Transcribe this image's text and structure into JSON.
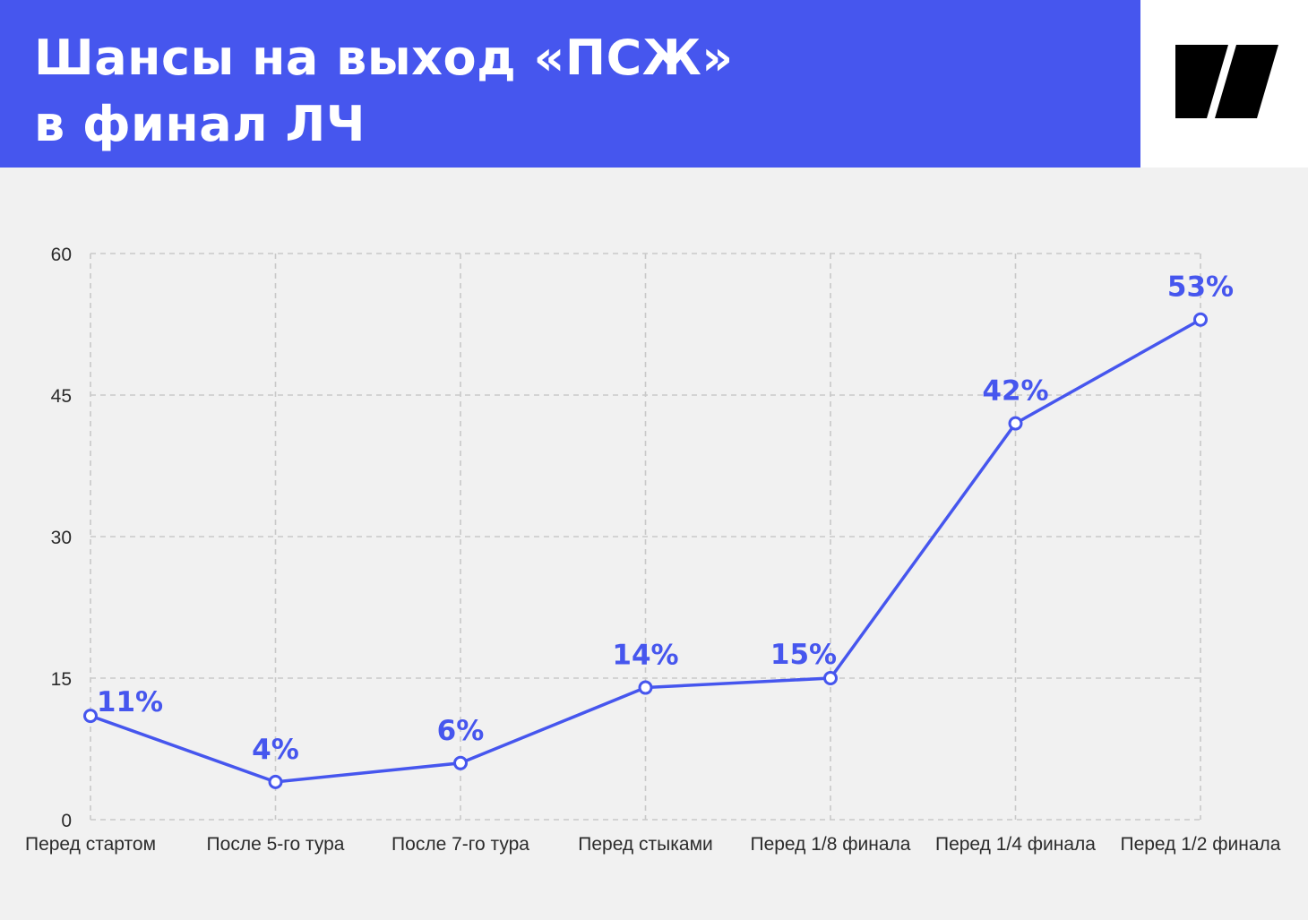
{
  "header": {
    "title_line1": "Шансы на выход «ПСЖ»",
    "title_line2": "в финал ЛЧ",
    "band_color": "#4656ee",
    "logo_icon": "publisher-logo-icon"
  },
  "chart_data": {
    "type": "line",
    "title": "Шансы на выход «ПСЖ» в финал ЛЧ",
    "categories": [
      "Перед стартом",
      "После 5-го тура",
      "После 7-го тура",
      "Перед стыками",
      "Перед 1/8 финала",
      "Перед 1/4 финала",
      "Перед 1/2 финала"
    ],
    "values": [
      11,
      4,
      6,
      14,
      15,
      42,
      53
    ],
    "data_labels": [
      "11%",
      "4%",
      "6%",
      "14%",
      "15%",
      "42%",
      "53%"
    ],
    "y_ticks": [
      0,
      15,
      30,
      45,
      60
    ],
    "ylim": [
      0,
      60
    ],
    "xlabel": "",
    "ylabel": "",
    "grid": true,
    "line_color": "#4656ee",
    "marker": "hollow-circle"
  }
}
